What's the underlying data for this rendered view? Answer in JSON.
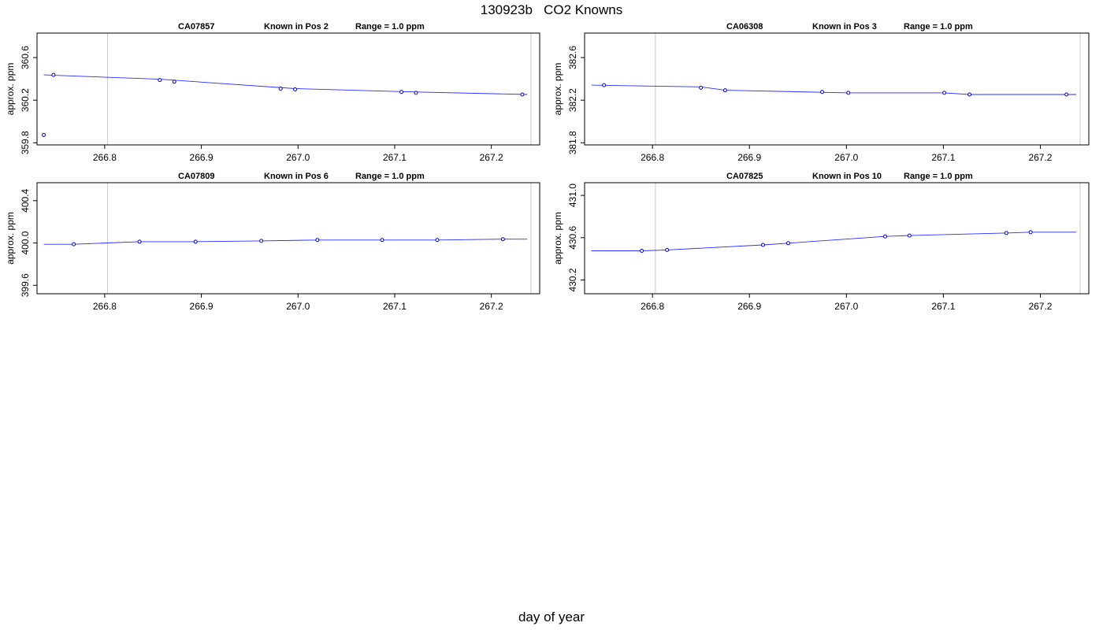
{
  "title": "130923b   CO2 Knowns",
  "xlabel": "day of year",
  "chart_data": [
    {
      "type": "line",
      "tank": "CA07857",
      "position_label": "Known in Pos 2",
      "range_label": "Range = 1.0 ppm",
      "ylabel": "approx. ppm",
      "xlim": [
        266.73,
        267.25
      ],
      "ylim": [
        359.78,
        360.83
      ],
      "xticks": [
        266.8,
        266.9,
        267.0,
        267.1,
        267.2
      ],
      "xtick_labels": [
        "266.8",
        "266.9",
        "267.0",
        "267.1",
        "267.2"
      ],
      "yticks": [
        359.8,
        360.2,
        360.6
      ],
      "ytick_labels": [
        "359.8",
        "360.2",
        "360.6"
      ],
      "vlines": [
        266.803,
        267.241
      ],
      "grid": false,
      "points": [
        {
          "x": 266.737,
          "y": 359.873
        },
        {
          "x": 266.747,
          "y": 360.437
        },
        {
          "x": 266.857,
          "y": 360.389
        },
        {
          "x": 266.872,
          "y": 360.373
        },
        {
          "x": 266.982,
          "y": 360.309
        },
        {
          "x": 266.997,
          "y": 360.301
        },
        {
          "x": 267.107,
          "y": 360.277
        },
        {
          "x": 267.122,
          "y": 360.269
        },
        {
          "x": 267.232,
          "y": 360.253
        }
      ],
      "fit_line": [
        {
          "x": 266.737,
          "y": 360.437
        },
        {
          "x": 266.857,
          "y": 360.397
        },
        {
          "x": 266.997,
          "y": 360.309
        },
        {
          "x": 267.122,
          "y": 360.277
        },
        {
          "x": 267.237,
          "y": 360.253
        }
      ]
    },
    {
      "type": "line",
      "tank": "CA06308",
      "position_label": "Known in Pos 3",
      "range_label": "Range = 1.0 ppm",
      "ylabel": "approx. ppm",
      "xlim": [
        266.73,
        267.25
      ],
      "ylim": [
        381.78,
        382.83
      ],
      "xticks": [
        266.8,
        266.9,
        267.0,
        267.1,
        267.2
      ],
      "xtick_labels": [
        "266.8",
        "266.9",
        "267.0",
        "267.1",
        "267.2"
      ],
      "yticks": [
        381.8,
        382.2,
        382.6
      ],
      "ytick_labels": [
        "381.8",
        "382.2",
        "382.6"
      ],
      "vlines": [
        266.803,
        267.241
      ],
      "grid": false,
      "points": [
        {
          "x": 266.75,
          "y": 382.341
        },
        {
          "x": 266.85,
          "y": 382.317
        },
        {
          "x": 266.875,
          "y": 382.293
        },
        {
          "x": 266.975,
          "y": 382.277
        },
        {
          "x": 267.002,
          "y": 382.269
        },
        {
          "x": 267.101,
          "y": 382.269
        },
        {
          "x": 267.127,
          "y": 382.253
        },
        {
          "x": 267.227,
          "y": 382.253
        }
      ],
      "fit_line": [
        {
          "x": 266.737,
          "y": 382.341
        },
        {
          "x": 266.85,
          "y": 382.325
        },
        {
          "x": 266.875,
          "y": 382.293
        },
        {
          "x": 267.002,
          "y": 382.269
        },
        {
          "x": 267.101,
          "y": 382.269
        },
        {
          "x": 267.127,
          "y": 382.253
        },
        {
          "x": 267.237,
          "y": 382.253
        }
      ]
    },
    {
      "type": "line",
      "tank": "CA07809",
      "position_label": "Known in Pos 6",
      "range_label": "Range = 1.0 ppm",
      "ylabel": "approx. ppm",
      "xlim": [
        266.73,
        267.25
      ],
      "ylim": [
        399.52,
        400.57
      ],
      "xticks": [
        266.8,
        266.9,
        267.0,
        267.1,
        267.2
      ],
      "xtick_labels": [
        "266.8",
        "266.9",
        "267.0",
        "267.1",
        "267.2"
      ],
      "yticks": [
        399.6,
        400.0,
        400.4
      ],
      "ytick_labels": [
        "399.6",
        "400.0",
        "400.4"
      ],
      "vlines": [
        266.803,
        267.241
      ],
      "grid": false,
      "points": [
        {
          "x": 266.768,
          "y": 399.988
        },
        {
          "x": 266.836,
          "y": 400.012
        },
        {
          "x": 266.894,
          "y": 400.012
        },
        {
          "x": 266.962,
          "y": 400.02
        },
        {
          "x": 267.02,
          "y": 400.028
        },
        {
          "x": 267.087,
          "y": 400.028
        },
        {
          "x": 267.144,
          "y": 400.028
        },
        {
          "x": 267.212,
          "y": 400.036
        }
      ],
      "fit_line": [
        {
          "x": 266.737,
          "y": 399.988
        },
        {
          "x": 266.768,
          "y": 399.988
        },
        {
          "x": 266.836,
          "y": 400.012
        },
        {
          "x": 266.894,
          "y": 400.012
        },
        {
          "x": 266.962,
          "y": 400.02
        },
        {
          "x": 267.02,
          "y": 400.028
        },
        {
          "x": 267.144,
          "y": 400.028
        },
        {
          "x": 267.212,
          "y": 400.036
        },
        {
          "x": 267.237,
          "y": 400.036
        }
      ]
    },
    {
      "type": "line",
      "tank": "CA07825",
      "position_label": "Known in Pos 10",
      "range_label": "Range = 1.0 ppm",
      "ylabel": "approx. ppm",
      "xlim": [
        266.73,
        267.25
      ],
      "ylim": [
        430.07,
        431.12
      ],
      "xticks": [
        266.8,
        266.9,
        267.0,
        267.1,
        267.2
      ],
      "xtick_labels": [
        "266.8",
        "266.9",
        "267.0",
        "267.1",
        "267.2"
      ],
      "yticks": [
        430.2,
        430.6,
        431.0
      ],
      "ytick_labels": [
        "430.2",
        "430.6",
        "431.0"
      ],
      "vlines": [
        266.803,
        267.241
      ],
      "grid": false,
      "points": [
        {
          "x": 266.789,
          "y": 430.476
        },
        {
          "x": 266.815,
          "y": 430.484
        },
        {
          "x": 266.914,
          "y": 430.532
        },
        {
          "x": 266.94,
          "y": 430.548
        },
        {
          "x": 267.04,
          "y": 430.612
        },
        {
          "x": 267.065,
          "y": 430.62
        },
        {
          "x": 267.165,
          "y": 430.644
        },
        {
          "x": 267.19,
          "y": 430.652
        }
      ],
      "fit_line": [
        {
          "x": 266.737,
          "y": 430.476
        },
        {
          "x": 266.789,
          "y": 430.476
        },
        {
          "x": 266.815,
          "y": 430.484
        },
        {
          "x": 266.914,
          "y": 430.532
        },
        {
          "x": 266.94,
          "y": 430.548
        },
        {
          "x": 267.04,
          "y": 430.612
        },
        {
          "x": 267.065,
          "y": 430.62
        },
        {
          "x": 267.165,
          "y": 430.644
        },
        {
          "x": 267.19,
          "y": 430.652
        },
        {
          "x": 267.237,
          "y": 430.652
        }
      ]
    }
  ],
  "colors": {
    "series": "#2b2bff",
    "point_stroke": "#0000cc",
    "reference_line": "#c8c8c8",
    "axis": "#000000"
  }
}
